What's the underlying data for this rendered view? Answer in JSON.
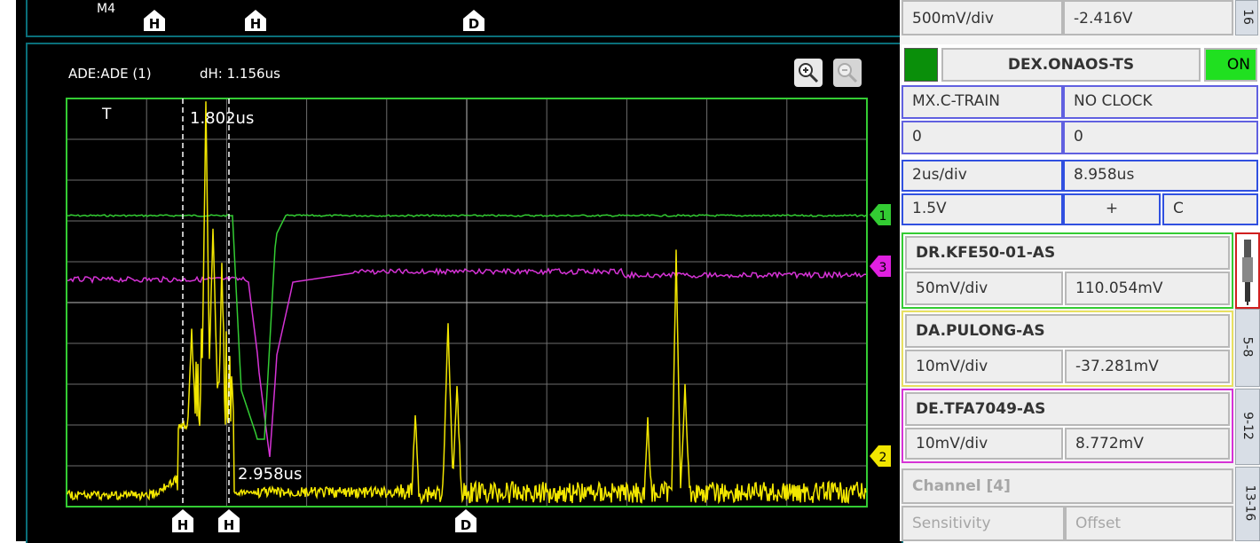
{
  "top_markers": {
    "m4": "M4",
    "h1": "H",
    "h2": "H",
    "d": "D"
  },
  "scope": {
    "header_left": "ADE:ADE (1)",
    "header_dh": "dH: 1.156us",
    "trigger_label": "T",
    "cursor_top_value": "1.802us",
    "cursor_bottom_value": "2.958us",
    "bottom_markers": {
      "h1": "H",
      "h2": "H",
      "d": "D"
    },
    "channel_markers": {
      "c1": "1",
      "c3": "3",
      "c2": "2"
    },
    "colors": {
      "grid": "#777777",
      "border": "#33cc33",
      "ch1": "#33cc33",
      "ch2": "#f2e600",
      "ch3": "#d633d6"
    }
  },
  "zoom": {
    "in_icon": "zoom-in-icon",
    "out_icon": "zoom-out-icon"
  },
  "panel": {
    "top_row": {
      "sensitivity": "500mV/div",
      "offset": "-2.416V",
      "tab": "16"
    },
    "timebase": {
      "name": "DEX.ONAOS-TS",
      "on": "ON",
      "mode": "MX.C-TRAIN",
      "clock": "NO CLOCK",
      "val1": "0",
      "val2": "0",
      "time_div": "2us/div",
      "delay": "8.958us",
      "trig_level": "1.5V",
      "slope": "+",
      "coupling": "C"
    },
    "ch1": {
      "name": "DR.KFE50-01-AS",
      "sensitivity": "50mV/div",
      "offset": "110.054mV"
    },
    "ch2": {
      "name": "DA.PULONG-AS",
      "sensitivity": "10mV/div",
      "offset": "-37.281mV"
    },
    "ch3": {
      "name": "DE.TFA7049-AS",
      "sensitivity": "10mV/div",
      "offset": "8.772mV"
    },
    "ch4": {
      "name": "Channel [4]",
      "sensitivity": "Sensitivity",
      "offset": "Offset"
    },
    "tabs": {
      "t58": "5-8",
      "t912": "9-12",
      "t1316": "13-16"
    }
  }
}
